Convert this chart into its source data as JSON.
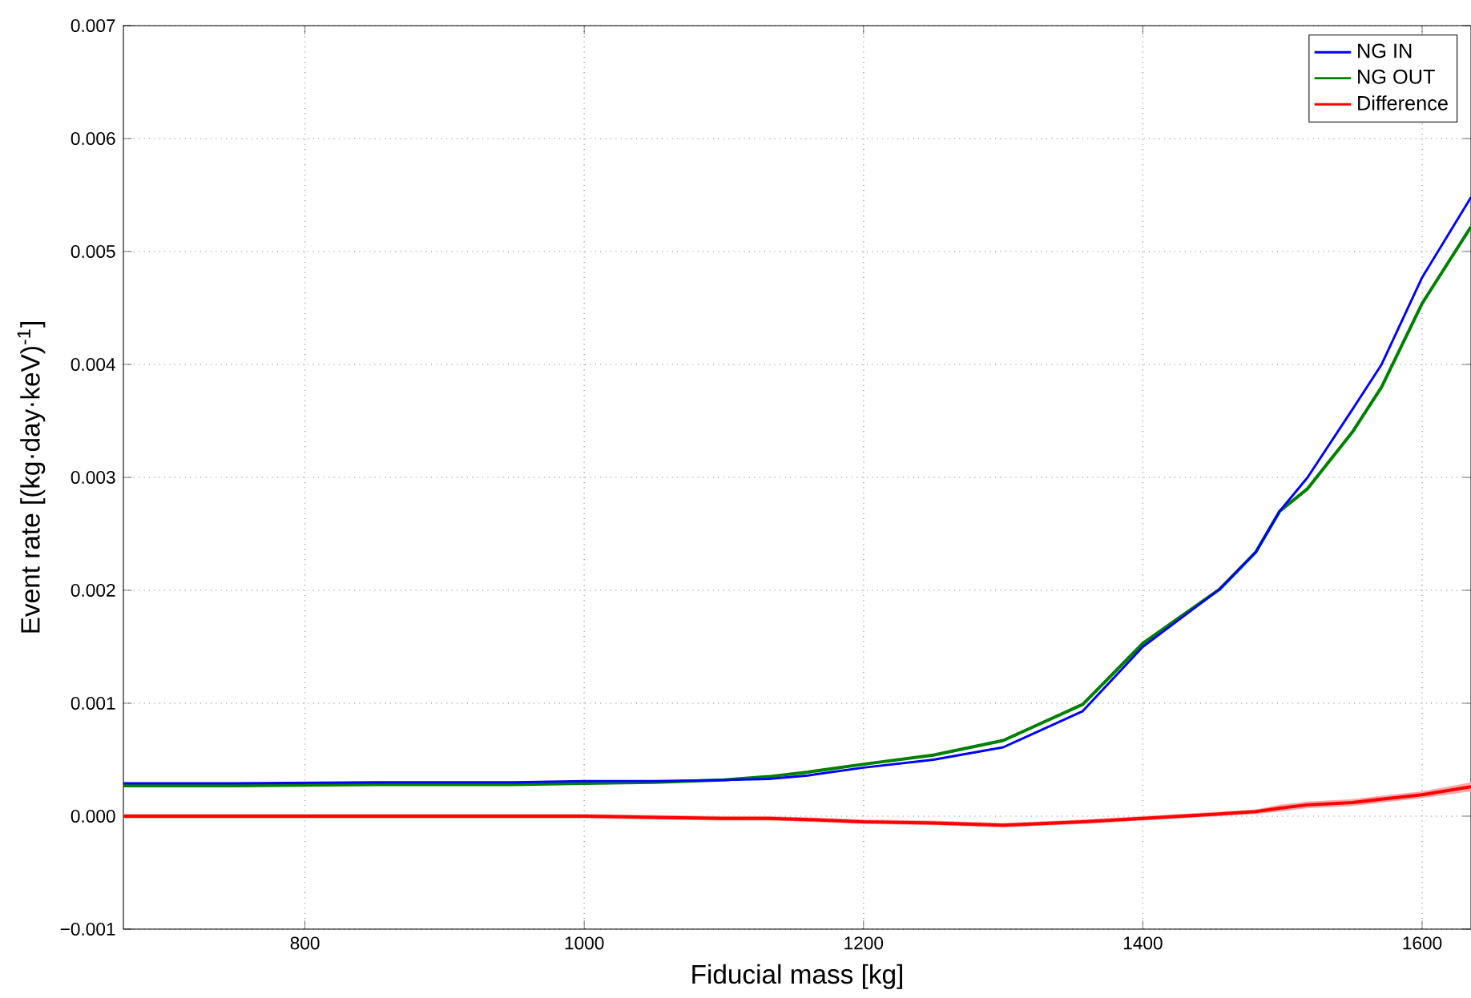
{
  "chart_data": {
    "type": "line",
    "xlabel": "Fiducial mass [kg]",
    "ylabel": "Event rate [(kg·day·keV)$^{-1}$]",
    "x": [
      670,
      750,
      850,
      950,
      1000,
      1050,
      1100,
      1132,
      1160,
      1200,
      1250,
      1300,
      1357,
      1400,
      1455,
      1481,
      1498,
      1518,
      1550,
      1571,
      1600,
      1635
    ],
    "series": [
      {
        "name": "NG IN",
        "color": "#0000ff",
        "values": [
          0.00029,
          0.00029,
          0.0003,
          0.0003,
          0.00031,
          0.00031,
          0.00032,
          0.00033,
          0.00036,
          0.00043,
          0.0005,
          0.00061,
          0.00093,
          0.0015,
          0.00201,
          0.00234,
          0.0027,
          0.003,
          0.0036,
          0.004,
          0.00477,
          0.00548
        ]
      },
      {
        "name": "NG OUT",
        "color": "#008000",
        "values": [
          0.00027,
          0.00027,
          0.00028,
          0.00028,
          0.00029,
          0.0003,
          0.00032,
          0.00035,
          0.00039,
          0.00046,
          0.00054,
          0.00067,
          0.00099,
          0.00153,
          0.00201,
          0.00234,
          0.0027,
          0.0029,
          0.0034,
          0.0038,
          0.00454,
          0.00522
        ]
      },
      {
        "name": "Difference",
        "color": "#ff0000",
        "values": [
          0.0,
          0.0,
          0.0,
          0.0,
          0.0,
          -1e-05,
          -2e-05,
          -2e-05,
          -3e-05,
          -5e-05,
          -6e-05,
          -8e-05,
          -5e-05,
          -2e-05,
          2e-05,
          4e-05,
          7e-05,
          0.0001,
          0.00012,
          0.00015,
          0.00019,
          0.00026
        ],
        "lower": [
          -2e-05,
          -2e-05,
          -2e-05,
          -2e-05,
          -2e-05,
          -3e-05,
          -4e-05,
          -4e-05,
          -5e-05,
          -7e-05,
          -8e-05,
          -0.0001,
          -7e-05,
          -4e-05,
          0.0,
          2e-05,
          4e-05,
          7e-05,
          9e-05,
          0.00012,
          0.00016,
          0.00022
        ],
        "upper": [
          2e-05,
          2e-05,
          2e-05,
          2e-05,
          2e-05,
          1e-05,
          0.0,
          0.0,
          -1e-05,
          -3e-05,
          -4e-05,
          -6e-05,
          -3e-05,
          0.0,
          4e-05,
          6e-05,
          0.0001,
          0.00013,
          0.00015,
          0.00018,
          0.00022,
          0.0003
        ]
      }
    ],
    "xlim": [
      670,
      1635
    ],
    "ylim": [
      -0.001,
      0.007
    ],
    "xticks": [
      800,
      1000,
      1200,
      1400,
      1600
    ],
    "yticks": [
      {
        "value": -0.001,
        "label": "−0.001"
      },
      {
        "value": 0,
        "label": "0.000"
      },
      {
        "value": 0.001,
        "label": "0.001"
      },
      {
        "value": 0.002,
        "label": "0.002"
      },
      {
        "value": 0.003,
        "label": "0.003"
      },
      {
        "value": 0.004,
        "label": "0.004"
      },
      {
        "value": 0.005,
        "label": "0.005"
      },
      {
        "value": 0.006,
        "label": "0.006"
      },
      {
        "value": 0.007,
        "label": "0.007"
      }
    ],
    "grid": true,
    "legend": "top right",
    "marker": "none",
    "line_style": "solid"
  }
}
